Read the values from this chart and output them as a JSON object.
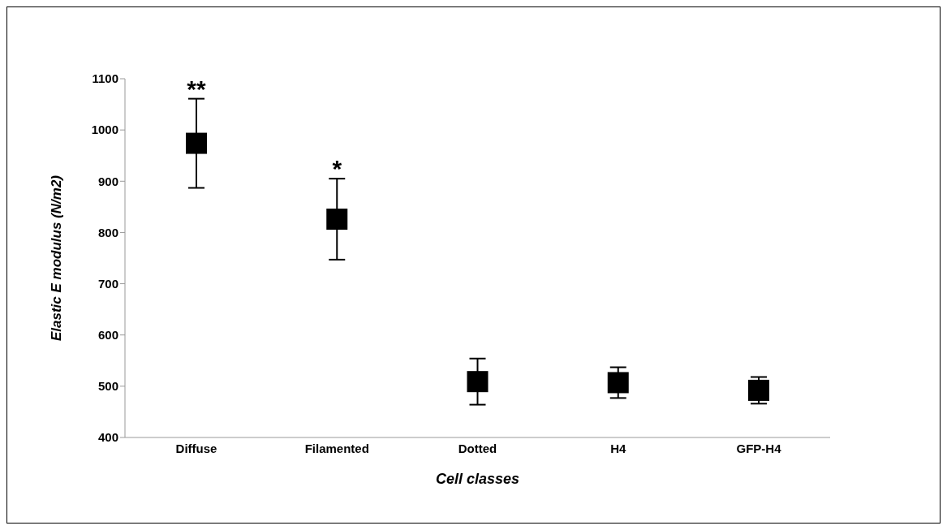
{
  "chart_data": {
    "type": "scatter",
    "xlabel": "Cell classes",
    "ylabel": "Elastic E modulus (N/m2)",
    "categories": [
      "Diffuse",
      "Filamented",
      "Dotted",
      "H4",
      "GFP-H4"
    ],
    "values": [
      974,
      826,
      509,
      507,
      492
    ],
    "errors": [
      87,
      79,
      45,
      30,
      26
    ],
    "color": "#000000",
    "marker": "square",
    "ylim": [
      400,
      1100
    ],
    "yticks": [
      400,
      500,
      600,
      700,
      800,
      900,
      1000,
      1100
    ],
    "annotations": [
      "**",
      "*"
    ]
  }
}
